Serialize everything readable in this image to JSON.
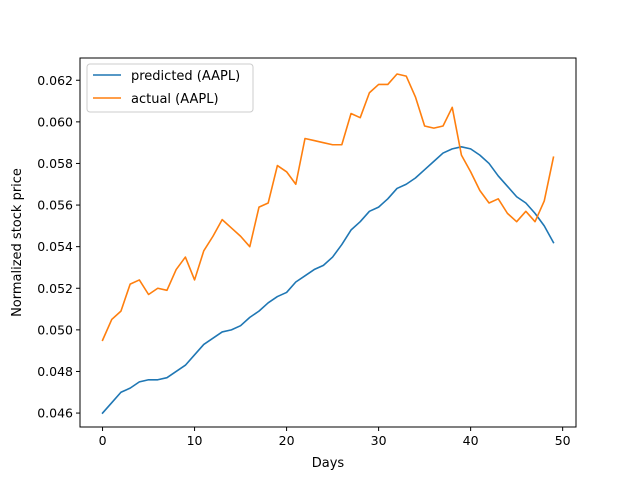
{
  "chart_data": {
    "type": "line",
    "xlabel": "Days",
    "ylabel": "Normalized stock price",
    "xlim": [
      -2.45,
      51.45
    ],
    "ylim": [
      0.04533,
      0.06307
    ],
    "xticks": [
      0,
      10,
      20,
      30,
      40,
      50
    ],
    "xtick_labels": [
      "0",
      "10",
      "20",
      "30",
      "40",
      "50"
    ],
    "yticks": [
      0.046,
      0.048,
      0.05,
      0.052,
      0.054,
      0.056,
      0.058,
      0.06,
      0.062
    ],
    "ytick_labels": [
      "0.046",
      "0.048",
      "0.050",
      "0.052",
      "0.054",
      "0.056",
      "0.058",
      "0.060",
      "0.062"
    ],
    "grid": false,
    "legend_position": "upper-left",
    "series": [
      {
        "name": "predicted (AAPL)",
        "color": "#1f77b4",
        "x": [
          0,
          1,
          2,
          3,
          4,
          5,
          6,
          7,
          8,
          9,
          10,
          11,
          12,
          13,
          14,
          15,
          16,
          17,
          18,
          19,
          20,
          21,
          22,
          23,
          24,
          25,
          26,
          27,
          28,
          29,
          30,
          31,
          32,
          33,
          34,
          35,
          36,
          37,
          38,
          39,
          40,
          41,
          42,
          43,
          44,
          45,
          46,
          47,
          48,
          49
        ],
        "values": [
          0.046,
          0.0465,
          0.047,
          0.0472,
          0.0475,
          0.0476,
          0.0476,
          0.0477,
          0.048,
          0.0483,
          0.0488,
          0.0493,
          0.0496,
          0.0499,
          0.05,
          0.0502,
          0.0506,
          0.0509,
          0.0513,
          0.0516,
          0.0518,
          0.0523,
          0.0526,
          0.0529,
          0.0531,
          0.0535,
          0.0541,
          0.0548,
          0.0552,
          0.0557,
          0.0559,
          0.0563,
          0.0568,
          0.057,
          0.0573,
          0.0577,
          0.0581,
          0.0585,
          0.0587,
          0.0588,
          0.0587,
          0.0584,
          0.058,
          0.0574,
          0.0569,
          0.0564,
          0.0561,
          0.0556,
          0.055,
          0.0542
        ]
      },
      {
        "name": "actual (AAPL)",
        "color": "#ff7f0e",
        "x": [
          0,
          1,
          2,
          3,
          4,
          5,
          6,
          7,
          8,
          9,
          10,
          11,
          12,
          13,
          14,
          15,
          16,
          17,
          18,
          19,
          20,
          21,
          22,
          23,
          24,
          25,
          26,
          27,
          28,
          29,
          30,
          31,
          32,
          33,
          34,
          35,
          36,
          37,
          38,
          39,
          40,
          41,
          42,
          43,
          44,
          45,
          46,
          47,
          48,
          49
        ],
        "values": [
          0.0495,
          0.0505,
          0.0509,
          0.0522,
          0.0524,
          0.0517,
          0.052,
          0.0519,
          0.0529,
          0.0535,
          0.0524,
          0.0538,
          0.0545,
          0.0553,
          0.0549,
          0.0545,
          0.054,
          0.0559,
          0.0561,
          0.0579,
          0.0576,
          0.057,
          0.0592,
          0.0591,
          0.059,
          0.0589,
          0.0589,
          0.0604,
          0.0602,
          0.0614,
          0.0618,
          0.0618,
          0.0623,
          0.0622,
          0.0612,
          0.0598,
          0.0597,
          0.0598,
          0.0607,
          0.0584,
          0.0576,
          0.0567,
          0.0561,
          0.0563,
          0.0556,
          0.0552,
          0.0557,
          0.0552,
          0.0562,
          0.0583
        ]
      }
    ]
  }
}
